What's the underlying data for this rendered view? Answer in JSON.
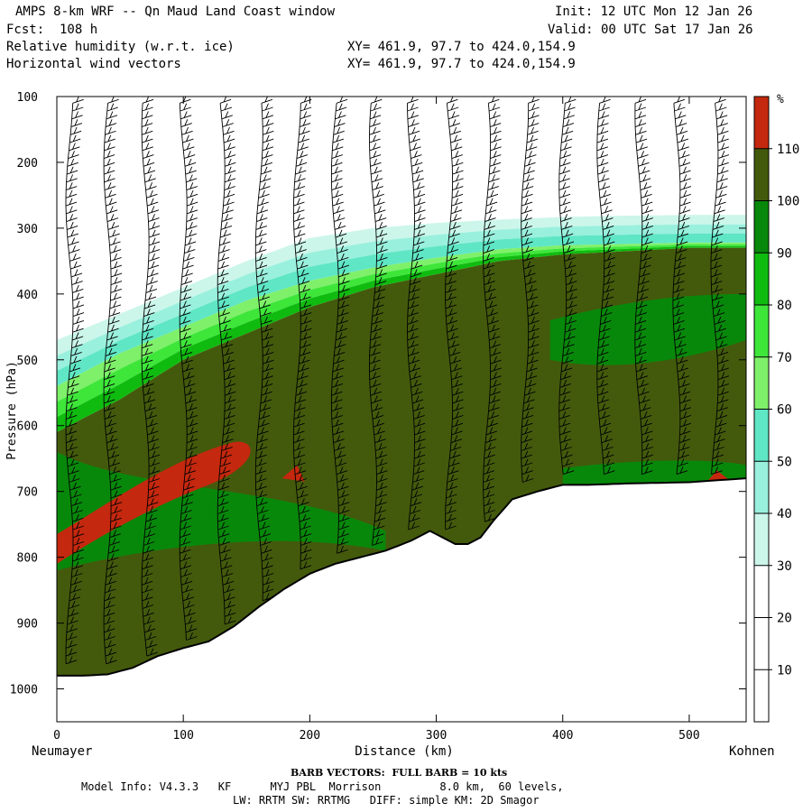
{
  "header": {
    "title": "AMPS 8-km WRF -- Qn Maud Land Coast window",
    "init": "Init: 12 UTC Mon 12 Jan 26",
    "fcst": "Fcst:  108 h",
    "valid": "Valid: 00 UTC Sat 17 Jan 26",
    "field1": "Relative humidity (w.r.t. ice)",
    "field2": "Horizontal wind vectors",
    "xy1": "XY= 461.9, 97.7 to 424.0,154.9",
    "xy2": "XY= 461.9, 97.7 to 424.0,154.9"
  },
  "footer": {
    "barb": "BARB VECTORS:  FULL BARB = 10 kts",
    "model1": "Model Info: V4.3.3   KF      MYJ PBL  Morrison         8.0 km,  60 levels,",
    "model2": "LW: RRTM SW: RRTMG   DIFF: simple KM: 2D Smagor"
  },
  "chart_data": {
    "type": "heatmap",
    "xlabel": "Distance (km)",
    "ylabel": "Pressure (hPa)",
    "x_start_label": "Neumayer",
    "x_end_label": "Kohnen",
    "xlim": [
      0,
      545
    ],
    "ylim": [
      1050,
      100
    ],
    "xticks": [
      0,
      100,
      200,
      300,
      400,
      500
    ],
    "yticks": [
      100,
      200,
      300,
      400,
      500,
      600,
      700,
      800,
      900,
      1000
    ],
    "colorbar": {
      "unit": "%",
      "levels": [
        10,
        20,
        30,
        40,
        50,
        60,
        70,
        80,
        90,
        100,
        110
      ],
      "colors": [
        "#ffffff",
        "#ffffff",
        "#ffffff",
        "#ccf6ea",
        "#99f0dd",
        "#5fe6c5",
        "#7ff06a",
        "#3ee63a",
        "#10bb10",
        "#08880b",
        "#435a0c",
        "#c4280e"
      ]
    },
    "terrain": {
      "x": [
        0,
        20,
        40,
        60,
        80,
        100,
        120,
        140,
        160,
        180,
        200,
        220,
        240,
        260,
        280,
        295,
        305,
        315,
        325,
        335,
        345,
        360,
        380,
        400,
        420,
        450,
        500,
        545
      ],
      "p": [
        980,
        980,
        978,
        968,
        950,
        938,
        928,
        905,
        875,
        848,
        825,
        810,
        800,
        790,
        775,
        760,
        770,
        780,
        780,
        770,
        745,
        712,
        700,
        690,
        690,
        688,
        686,
        680
      ]
    },
    "rh_boundaries": {
      "x": [
        0,
        50,
        100,
        150,
        200,
        250,
        300,
        350,
        400,
        450,
        500,
        545
      ],
      "p_rh30": [
        470,
        430,
        390,
        350,
        315,
        300,
        292,
        287,
        283,
        281,
        280,
        280
      ],
      "p_rh60": [
        540,
        490,
        450,
        410,
        380,
        360,
        345,
        332,
        326,
        324,
        322,
        322
      ],
      "p_rh90": [
        610,
        560,
        500,
        460,
        420,
        390,
        370,
        350,
        340,
        335,
        330,
        330
      ]
    },
    "wind_barb_x": [
      10,
      40,
      70,
      100,
      130,
      160,
      190,
      220,
      250,
      280,
      310,
      340,
      370,
      400,
      430,
      460,
      490,
      520
    ]
  }
}
